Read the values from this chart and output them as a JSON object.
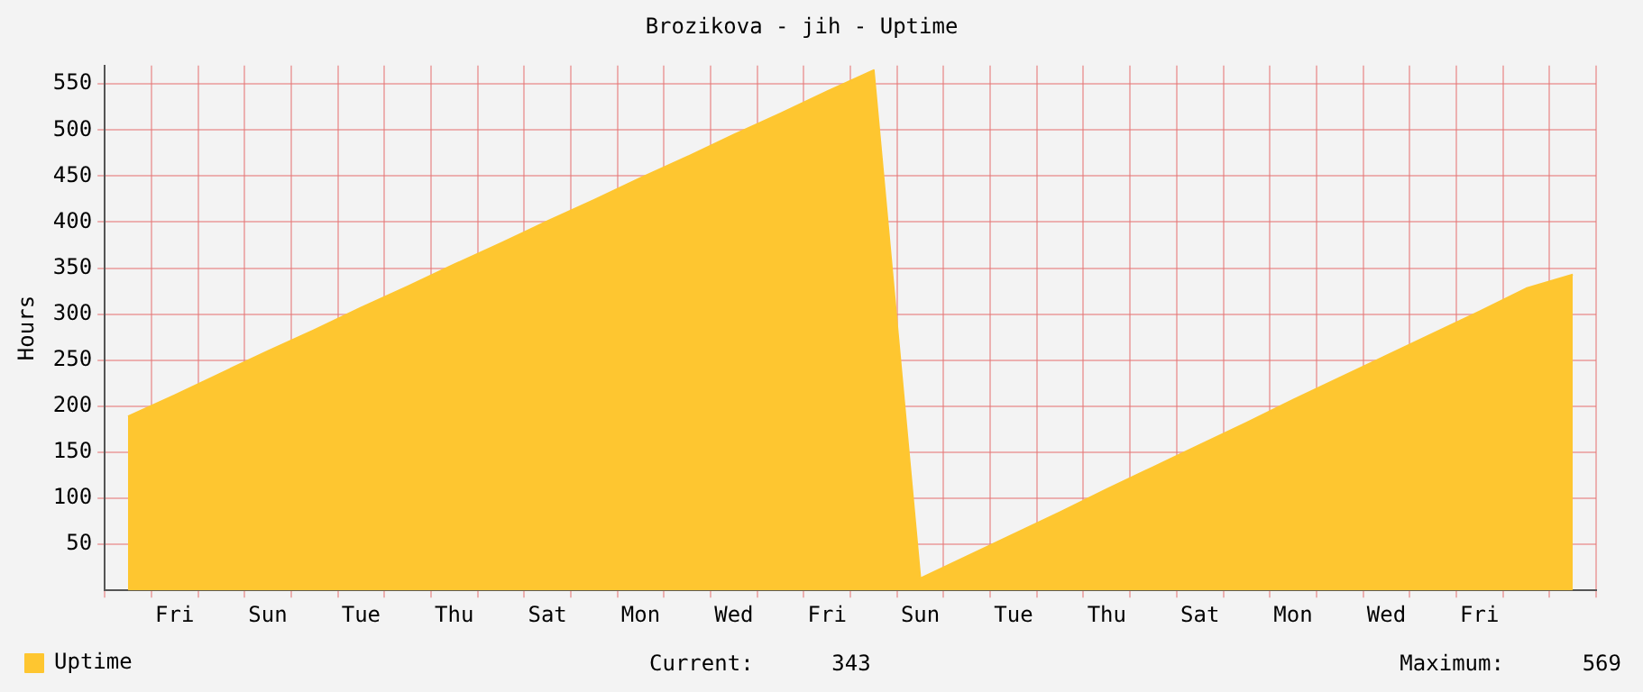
{
  "chart_data": {
    "type": "area",
    "title": "Brozikova - jih - Uptime",
    "ylabel": "Hours",
    "categories": [
      null,
      "Fri",
      null,
      "Sun",
      null,
      "Tue",
      null,
      "Thu",
      null,
      "Sat",
      null,
      "Mon",
      null,
      "Wed",
      null,
      "Fri",
      null,
      "Sun",
      null,
      "Tue",
      null,
      "Thu",
      null,
      "Sat",
      null,
      "Mon",
      null,
      "Wed",
      null,
      "Fri",
      null,
      null
    ],
    "series": [
      {
        "name": "Uptime",
        "color": "#fec630",
        "values": [
          189,
          212,
          236,
          260,
          283,
          307,
          330,
          354,
          377,
          401,
          424,
          448,
          471,
          495,
          518,
          542,
          565,
          13,
          37,
          61,
          85,
          110,
          134,
          158,
          182,
          207,
          231,
          255,
          279,
          303,
          328,
          343
        ]
      }
    ],
    "ylim": [
      0,
      570
    ],
    "yticks": [
      50,
      100,
      150,
      200,
      250,
      300,
      350,
      400,
      450,
      500,
      550
    ],
    "grid": true,
    "legend": "bottom left",
    "marker": "none",
    "annotations": [
      "Current:      343",
      "Maximum:      569"
    ]
  }
}
